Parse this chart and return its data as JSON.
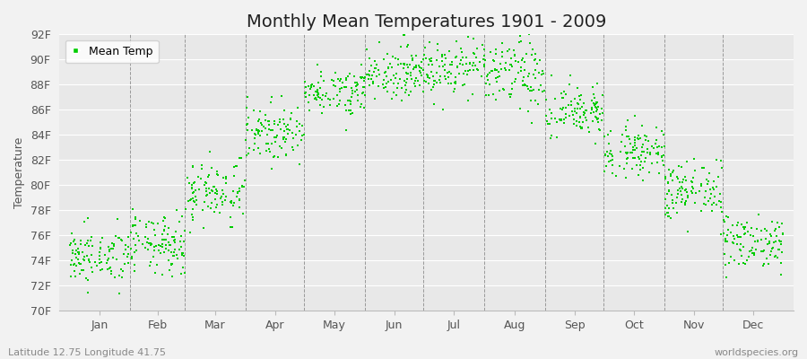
{
  "title": "Monthly Mean Temperatures 1901 - 2009",
  "ylabel": "Temperature",
  "xlabel_labels": [
    "Jan",
    "Feb",
    "Mar",
    "Apr",
    "May",
    "Jun",
    "Jul",
    "Aug",
    "Sep",
    "Oct",
    "Nov",
    "Dec"
  ],
  "ylim": [
    70,
    92
  ],
  "dot_color": "#00CC00",
  "bg_color": "#F2F2F2",
  "plot_bg_odd": "#E8E8E8",
  "plot_bg_even": "#EBEBEB",
  "grid_color": "#FFFFFF",
  "vline_color": "#999999",
  "legend_label": "Mean Temp",
  "footer_left": "Latitude 12.75 Longitude 41.75",
  "footer_right": "worldspecies.org",
  "title_fontsize": 14,
  "axis_fontsize": 9,
  "footer_fontsize": 8,
  "monthly_means": [
    74.3,
    75.2,
    79.5,
    84.2,
    87.5,
    89.0,
    89.5,
    88.8,
    85.8,
    82.8,
    79.5,
    75.5
  ],
  "monthly_std": [
    1.1,
    1.2,
    1.3,
    1.1,
    0.9,
    1.0,
    1.2,
    1.4,
    1.1,
    1.0,
    1.2,
    1.1
  ],
  "n_years": 109,
  "days_in_month": [
    31,
    28,
    31,
    30,
    31,
    30,
    31,
    31,
    30,
    31,
    30,
    31
  ]
}
